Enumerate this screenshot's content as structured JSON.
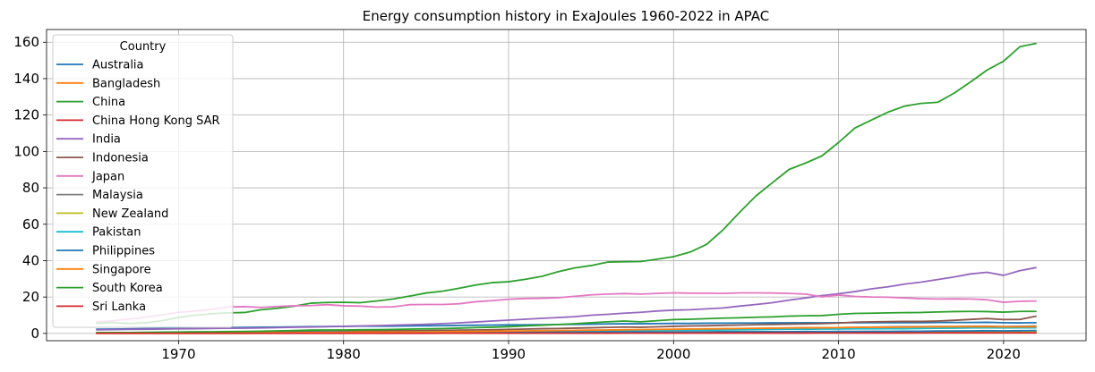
{
  "chart_data": {
    "type": "line",
    "title": "Energy consumption history in ExaJoules 1960-2022 in APAC",
    "xlabel": "",
    "ylabel": "",
    "xlim": [
      1962,
      2025
    ],
    "ylim": [
      -4,
      167
    ],
    "xticks": [
      1970,
      1980,
      1990,
      2000,
      2010,
      2020
    ],
    "yticks": [
      0,
      20,
      40,
      60,
      80,
      100,
      120,
      140,
      160
    ],
    "grid": true,
    "legend": {
      "title": "Country",
      "position": "upper-left"
    },
    "x": [
      1965,
      1966,
      1967,
      1968,
      1969,
      1970,
      1971,
      1972,
      1973,
      1974,
      1975,
      1976,
      1977,
      1978,
      1979,
      1980,
      1981,
      1982,
      1983,
      1984,
      1985,
      1986,
      1987,
      1988,
      1989,
      1990,
      1991,
      1992,
      1993,
      1994,
      1995,
      1996,
      1997,
      1998,
      1999,
      2000,
      2001,
      2002,
      2003,
      2004,
      2005,
      2006,
      2007,
      2008,
      2009,
      2010,
      2011,
      2012,
      2013,
      2014,
      2015,
      2016,
      2017,
      2018,
      2019,
      2020,
      2021,
      2022
    ],
    "series": [
      {
        "name": "Australia",
        "color": "#1f77b4",
        "values": [
          2.3,
          2.4,
          2.5,
          2.6,
          2.7,
          2.9,
          3.0,
          3.1,
          3.2,
          3.3,
          3.4,
          3.5,
          3.6,
          3.7,
          3.8,
          3.9,
          4.0,
          4.0,
          4.0,
          4.1,
          4.2,
          4.3,
          4.4,
          4.5,
          4.6,
          4.7,
          4.7,
          4.8,
          4.9,
          5.0,
          5.1,
          5.2,
          5.3,
          5.3,
          5.4,
          5.5,
          5.5,
          5.6,
          5.6,
          5.7,
          5.7,
          5.8,
          5.8,
          5.9,
          5.8,
          5.9,
          5.9,
          5.9,
          5.9,
          5.9,
          5.9,
          6.0,
          6.0,
          6.0,
          6.1,
          5.9,
          5.8,
          5.9
        ]
      },
      {
        "name": "Bangladesh",
        "color": "#ff7f0e",
        "values": [
          0.05,
          0.05,
          0.06,
          0.06,
          0.07,
          0.07,
          0.07,
          0.08,
          0.08,
          0.09,
          0.1,
          0.1,
          0.11,
          0.12,
          0.13,
          0.14,
          0.15,
          0.16,
          0.17,
          0.18,
          0.2,
          0.21,
          0.22,
          0.24,
          0.25,
          0.27,
          0.28,
          0.3,
          0.32,
          0.34,
          0.36,
          0.38,
          0.4,
          0.42,
          0.44,
          0.46,
          0.48,
          0.5,
          0.53,
          0.56,
          0.6,
          0.63,
          0.66,
          0.7,
          0.74,
          0.78,
          0.82,
          0.86,
          0.9,
          0.95,
          1.0,
          1.05,
          1.1,
          1.2,
          1.25,
          1.2,
          1.3,
          1.3
        ]
      },
      {
        "name": "China",
        "color": "#2ca02c",
        "values": [
          5.5,
          6.0,
          5.5,
          5.8,
          7.0,
          8.8,
          10.0,
          10.8,
          11.3,
          11.5,
          13.0,
          13.8,
          15.0,
          16.6,
          17.0,
          17.1,
          16.9,
          17.8,
          18.9,
          20.5,
          22.2,
          23.2,
          24.8,
          26.6,
          27.9,
          28.4,
          29.7,
          31.3,
          33.9,
          36.0,
          37.3,
          39.2,
          39.4,
          39.5,
          40.8,
          42.2,
          44.7,
          48.9,
          56.9,
          66.5,
          75.6,
          82.9,
          90.1,
          93.6,
          97.6,
          104.9,
          112.9,
          117.3,
          121.6,
          124.9,
          126.4,
          127.0,
          132.0,
          138.2,
          144.7,
          149.6,
          157.6,
          159.4
        ]
      },
      {
        "name": "China Hong Kong SAR",
        "color": "#d62728",
        "values": [
          0.1,
          0.1,
          0.1,
          0.1,
          0.1,
          0.1,
          0.2,
          0.2,
          0.2,
          0.2,
          0.2,
          0.2,
          0.3,
          0.3,
          0.3,
          0.3,
          0.3,
          0.4,
          0.4,
          0.4,
          0.4,
          0.5,
          0.5,
          0.5,
          0.5,
          0.6,
          0.6,
          0.6,
          0.7,
          0.7,
          0.7,
          0.7,
          0.7,
          0.8,
          0.8,
          0.8,
          0.8,
          0.8,
          0.9,
          0.9,
          0.9,
          0.9,
          0.9,
          0.9,
          0.9,
          1.0,
          1.0,
          1.0,
          1.0,
          1.0,
          1.0,
          1.0,
          1.0,
          1.0,
          1.0,
          0.9,
          0.9,
          0.9
        ]
      },
      {
        "name": "India",
        "color": "#9467bd",
        "values": [
          2.0,
          2.1,
          2.2,
          2.3,
          2.4,
          2.5,
          2.6,
          2.7,
          2.8,
          2.9,
          3.0,
          3.2,
          3.4,
          3.5,
          3.7,
          3.9,
          4.1,
          4.3,
          4.5,
          4.8,
          5.0,
          5.4,
          5.8,
          6.3,
          6.8,
          7.3,
          7.8,
          8.3,
          8.7,
          9.2,
          10.0,
          10.5,
          11.1,
          11.6,
          12.3,
          12.8,
          13.0,
          13.5,
          14.0,
          15.0,
          15.9,
          16.9,
          18.3,
          19.5,
          20.8,
          21.8,
          23.0,
          24.5,
          25.6,
          27.1,
          28.2,
          29.6,
          31.0,
          32.7,
          33.6,
          31.9,
          34.5,
          36.2
        ]
      },
      {
        "name": "Indonesia",
        "color": "#8c564b",
        "values": [
          0.3,
          0.3,
          0.3,
          0.4,
          0.4,
          0.4,
          0.5,
          0.5,
          0.6,
          0.7,
          0.7,
          0.8,
          0.9,
          1.0,
          1.1,
          1.2,
          1.3,
          1.4,
          1.5,
          1.5,
          1.6,
          1.7,
          1.8,
          1.9,
          2.0,
          2.2,
          2.4,
          2.6,
          2.7,
          2.9,
          3.1,
          3.3,
          3.5,
          3.4,
          3.6,
          3.9,
          4.1,
          4.2,
          4.4,
          4.6,
          4.8,
          4.9,
          5.1,
          5.2,
          5.4,
          5.7,
          6.2,
          6.4,
          6.5,
          6.6,
          6.6,
          6.8,
          7.2,
          7.7,
          8.2,
          7.6,
          7.7,
          9.5
        ]
      },
      {
        "name": "Japan",
        "color": "#e377c2",
        "values": [
          6.3,
          6.9,
          7.9,
          8.9,
          10.2,
          11.6,
          12.3,
          13.2,
          14.6,
          14.7,
          14.3,
          14.8,
          15.2,
          15.3,
          15.8,
          15.2,
          15.0,
          14.5,
          14.6,
          15.8,
          15.9,
          15.9,
          16.3,
          17.4,
          18.0,
          18.8,
          19.2,
          19.3,
          19.6,
          20.4,
          21.2,
          21.6,
          21.9,
          21.6,
          22.0,
          22.3,
          22.1,
          22.1,
          22.0,
          22.3,
          22.3,
          22.2,
          22.0,
          21.6,
          20.1,
          21.1,
          20.3,
          20.0,
          19.9,
          19.5,
          19.1,
          18.9,
          19.0,
          18.9,
          18.5,
          17.1,
          17.7,
          17.8
        ]
      },
      {
        "name": "Malaysia",
        "color": "#7f7f7f",
        "values": [
          0.2,
          0.2,
          0.2,
          0.3,
          0.3,
          0.3,
          0.3,
          0.3,
          0.4,
          0.4,
          0.4,
          0.5,
          0.5,
          0.5,
          0.6,
          0.6,
          0.6,
          0.7,
          0.7,
          0.8,
          0.8,
          0.9,
          0.9,
          1.0,
          1.0,
          1.1,
          1.2,
          1.3,
          1.4,
          1.5,
          1.6,
          1.8,
          1.9,
          1.9,
          2.0,
          2.2,
          2.3,
          2.4,
          2.5,
          2.6,
          2.7,
          2.8,
          3.0,
          3.1,
          3.1,
          3.2,
          3.3,
          3.5,
          3.6,
          3.7,
          3.7,
          3.8,
          3.8,
          3.9,
          4.0,
          3.8,
          3.9,
          4.1
        ]
      },
      {
        "name": "New Zealand",
        "color": "#bcbd22",
        "values": [
          0.3,
          0.3,
          0.3,
          0.3,
          0.3,
          0.4,
          0.4,
          0.4,
          0.4,
          0.4,
          0.4,
          0.4,
          0.4,
          0.5,
          0.5,
          0.5,
          0.5,
          0.5,
          0.6,
          0.6,
          0.6,
          0.6,
          0.7,
          0.7,
          0.7,
          0.7,
          0.7,
          0.7,
          0.7,
          0.7,
          0.8,
          0.8,
          0.8,
          0.8,
          0.8,
          0.8,
          0.8,
          0.8,
          0.8,
          0.8,
          0.8,
          0.8,
          0.8,
          0.8,
          0.8,
          0.9,
          0.9,
          0.9,
          0.9,
          0.9,
          0.9,
          0.9,
          0.9,
          0.9,
          0.9,
          0.8,
          0.8,
          0.8
        ]
      },
      {
        "name": "Pakistan",
        "color": "#17becf",
        "values": [
          0.3,
          0.3,
          0.3,
          0.3,
          0.4,
          0.4,
          0.4,
          0.4,
          0.4,
          0.5,
          0.5,
          0.5,
          0.5,
          0.6,
          0.6,
          0.7,
          0.7,
          0.7,
          0.8,
          0.8,
          0.9,
          0.9,
          1.0,
          1.0,
          1.1,
          1.1,
          1.2,
          1.2,
          1.3,
          1.4,
          1.4,
          1.5,
          1.6,
          1.6,
          1.7,
          1.8,
          1.8,
          1.8,
          1.9,
          2.0,
          2.1,
          2.2,
          2.3,
          2.3,
          2.4,
          2.4,
          2.5,
          2.5,
          2.6,
          2.6,
          2.7,
          2.8,
          2.9,
          3.0,
          3.1,
          3.0,
          3.1,
          3.1
        ]
      },
      {
        "name": "Philippines",
        "color": "#1f77b4",
        "values": [
          0.3,
          0.3,
          0.3,
          0.3,
          0.4,
          0.4,
          0.4,
          0.4,
          0.4,
          0.4,
          0.4,
          0.5,
          0.5,
          0.5,
          0.5,
          0.5,
          0.5,
          0.5,
          0.5,
          0.5,
          0.5,
          0.5,
          0.5,
          0.6,
          0.6,
          0.6,
          0.6,
          0.6,
          0.7,
          0.7,
          0.7,
          0.8,
          0.8,
          0.8,
          0.8,
          0.8,
          0.8,
          0.8,
          0.9,
          0.9,
          0.9,
          0.9,
          0.9,
          1.0,
          1.0,
          1.0,
          1.0,
          1.1,
          1.1,
          1.2,
          1.2,
          1.3,
          1.3,
          1.4,
          1.5,
          1.4,
          1.5,
          1.6
        ]
      },
      {
        "name": "Singapore",
        "color": "#ff7f0e",
        "values": [
          0.1,
          0.1,
          0.1,
          0.2,
          0.2,
          0.2,
          0.2,
          0.3,
          0.3,
          0.3,
          0.4,
          0.4,
          0.4,
          0.5,
          0.5,
          0.6,
          0.7,
          0.7,
          0.7,
          0.8,
          0.8,
          0.9,
          1.0,
          1.1,
          1.2,
          1.3,
          1.4,
          1.5,
          1.6,
          1.7,
          1.8,
          1.9,
          2.0,
          2.1,
          2.2,
          2.3,
          2.4,
          2.5,
          2.6,
          2.7,
          2.8,
          2.9,
          3.0,
          3.1,
          3.1,
          3.2,
          3.3,
          3.4,
          3.4,
          3.5,
          3.6,
          3.6,
          3.7,
          3.7,
          3.7,
          3.6,
          3.6,
          3.7
        ]
      },
      {
        "name": "South Korea",
        "color": "#2ca02c",
        "values": [
          0.4,
          0.5,
          0.5,
          0.6,
          0.7,
          0.8,
          0.9,
          0.9,
          1.0,
          1.1,
          1.2,
          1.4,
          1.6,
          1.8,
          1.9,
          1.9,
          2.0,
          2.1,
          2.2,
          2.4,
          2.5,
          2.7,
          2.9,
          3.2,
          3.4,
          3.7,
          4.1,
          4.5,
          4.9,
          5.3,
          5.9,
          6.4,
          6.8,
          6.4,
          7.0,
          7.6,
          7.8,
          8.1,
          8.4,
          8.6,
          8.9,
          9.1,
          9.5,
          9.7,
          9.8,
          10.5,
          11.0,
          11.1,
          11.3,
          11.4,
          11.5,
          11.8,
          12.0,
          12.1,
          12.0,
          11.7,
          12.1,
          12.1
        ]
      },
      {
        "name": "Sri Lanka",
        "color": "#d62728",
        "values": [
          0.05,
          0.05,
          0.05,
          0.05,
          0.05,
          0.06,
          0.06,
          0.06,
          0.06,
          0.06,
          0.06,
          0.06,
          0.07,
          0.07,
          0.07,
          0.08,
          0.08,
          0.08,
          0.09,
          0.09,
          0.09,
          0.1,
          0.1,
          0.1,
          0.1,
          0.1,
          0.1,
          0.11,
          0.12,
          0.13,
          0.14,
          0.15,
          0.16,
          0.17,
          0.18,
          0.19,
          0.19,
          0.2,
          0.2,
          0.2,
          0.21,
          0.21,
          0.21,
          0.21,
          0.22,
          0.23,
          0.25,
          0.26,
          0.25,
          0.27,
          0.29,
          0.31,
          0.32,
          0.33,
          0.33,
          0.31,
          0.32,
          0.29
        ]
      }
    ]
  }
}
